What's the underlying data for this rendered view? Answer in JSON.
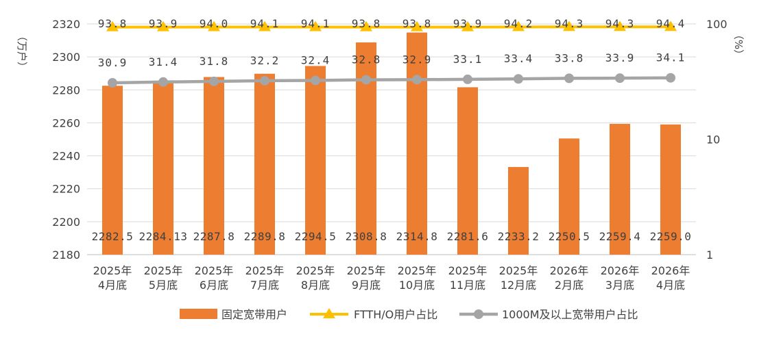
{
  "chart_data": {
    "type": "bar",
    "categories": [
      [
        "2025年",
        "4月底"
      ],
      [
        "2025年",
        "5月底"
      ],
      [
        "2025年",
        "6月底"
      ],
      [
        "2025年",
        "7月底"
      ],
      [
        "2025年",
        "8月底"
      ],
      [
        "2025年",
        "9月底"
      ],
      [
        "2025年",
        "10月底"
      ],
      [
        "2025年",
        "11月底"
      ],
      [
        "2025年",
        "12月底"
      ],
      [
        "2026年",
        "2月底"
      ],
      [
        "2026年",
        "3月底"
      ],
      [
        "2026年",
        "4月底"
      ]
    ],
    "left_axis": {
      "unit": "（万户）",
      "min": 2180,
      "max": 2320,
      "ticks": [
        2180,
        2200,
        2220,
        2240,
        2260,
        2280,
        2300,
        2320
      ]
    },
    "right_axis": {
      "unit": "（%）",
      "scale": "log",
      "min": 1,
      "max": 100,
      "ticks": [
        1,
        10,
        100
      ]
    },
    "grid": true,
    "legend_position": "bottom",
    "series": [
      {
        "name": "固定宽带用户",
        "kind": "bar",
        "axis": "left",
        "color": "#ED7D31",
        "values": [
          2282.5,
          2284.13,
          2287.8,
          2289.8,
          2294.5,
          2308.8,
          2314.8,
          2281.6,
          2233.2,
          2250.5,
          2259.4,
          2259.0
        ],
        "labels": [
          "2282.5",
          "2284.13",
          "2287.8",
          "2289.8",
          "2294.5",
          "2308.8",
          "2314.8",
          "2281.6",
          "2233.2",
          "2250.5",
          "2259.4",
          "2259.0"
        ]
      },
      {
        "name": "FTTH/O用户占比",
        "kind": "line",
        "axis": "right",
        "color": "#FFC000",
        "marker": "triangle",
        "values": [
          93.8,
          93.9,
          94.0,
          94.1,
          94.1,
          93.8,
          93.8,
          93.9,
          94.2,
          94.3,
          94.3,
          94.4
        ],
        "labels": [
          "93.8",
          "93.9",
          "94.0",
          "94.1",
          "94.1",
          "93.8",
          "93.8",
          "93.9",
          "94.2",
          "94.3",
          "94.3",
          "94.4"
        ]
      },
      {
        "name": "1000M及以上宽带用户占比",
        "kind": "line",
        "axis": "right",
        "color": "#A5A5A5",
        "marker": "circle",
        "values": [
          30.9,
          31.4,
          31.8,
          32.2,
          32.4,
          32.8,
          32.9,
          33.1,
          33.4,
          33.8,
          33.9,
          34.1
        ],
        "labels": [
          "30.9",
          "31.4",
          "31.8",
          "32.2",
          "32.4",
          "32.8",
          "32.9",
          "33.1",
          "33.4",
          "33.8",
          "33.9",
          "34.1"
        ]
      }
    ]
  }
}
